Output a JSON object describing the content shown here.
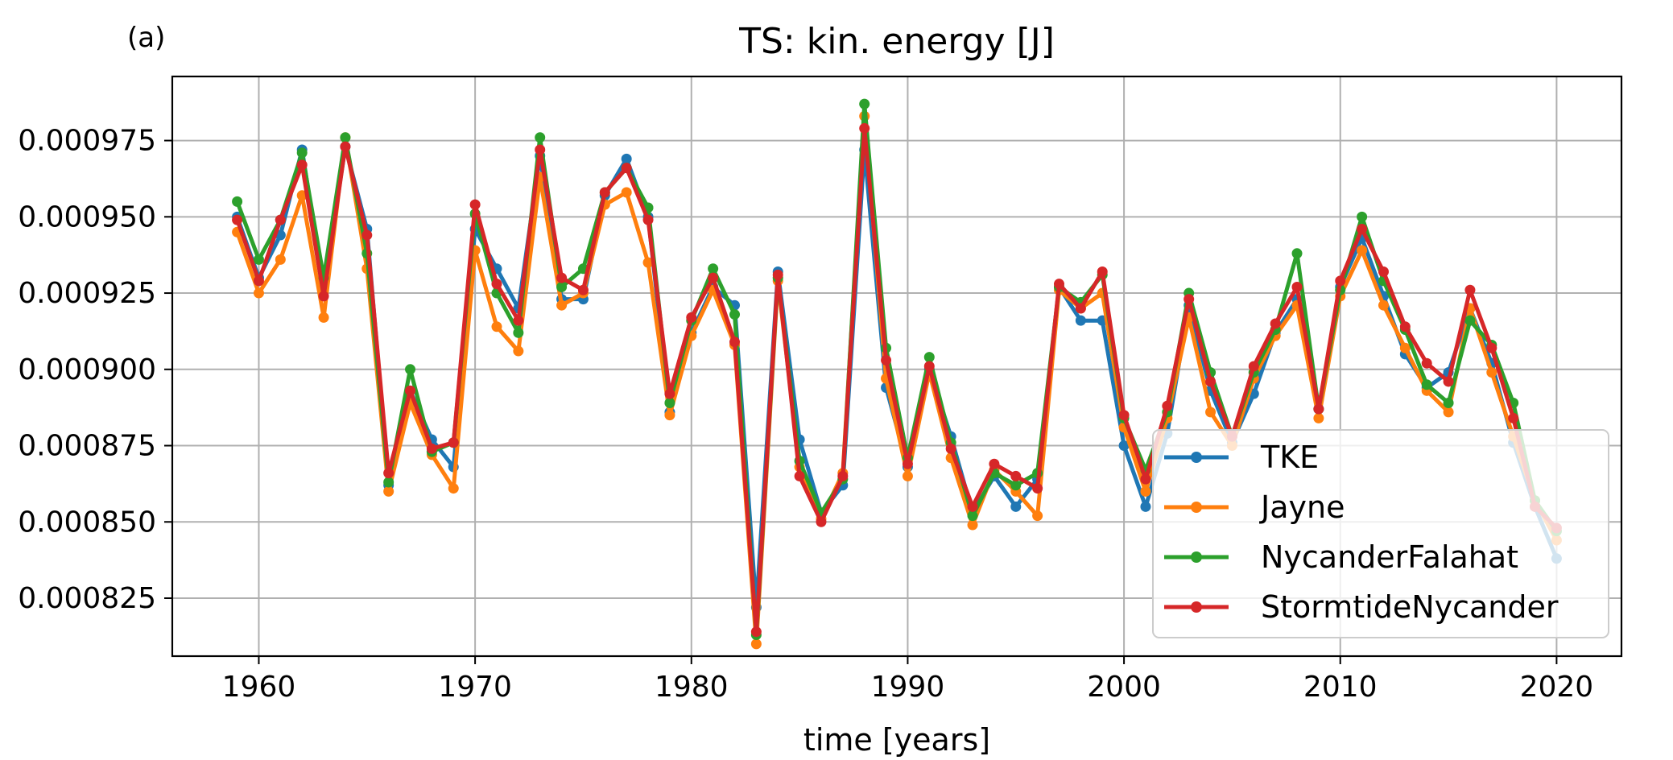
{
  "panel_label": "(a)",
  "chart_data": {
    "type": "line",
    "title": "TS: kin. energy [J]",
    "xlabel": "time [years]",
    "ylabel": "",
    "xlim": [
      1956,
      2023
    ],
    "ylim": [
      0.000806,
      0.000996
    ],
    "grid": true,
    "legend_position": "lower-right",
    "x_ticks": [
      1960,
      1970,
      1980,
      1990,
      2000,
      2010,
      2020
    ],
    "x_tick_labels": [
      "1960",
      "1970",
      "1980",
      "1990",
      "2000",
      "2010",
      "2020"
    ],
    "y_ticks": [
      0.000825,
      0.00085,
      0.000875,
      0.0009,
      0.000925,
      0.00095,
      0.000975
    ],
    "y_tick_labels": [
      "0.000825",
      "0.000850",
      "0.000875",
      "0.000900",
      "0.000925",
      "0.000950",
      "0.000975"
    ],
    "x": [
      1959,
      1960,
      1961,
      1962,
      1963,
      1964,
      1965,
      1966,
      1967,
      1968,
      1969,
      1970,
      1971,
      1972,
      1973,
      1974,
      1975,
      1976,
      1977,
      1978,
      1979,
      1980,
      1981,
      1982,
      1983,
      1984,
      1985,
      1986,
      1987,
      1988,
      1989,
      1990,
      1991,
      1992,
      1993,
      1994,
      1995,
      1996,
      1997,
      1998,
      1999,
      2000,
      2001,
      2002,
      2003,
      2004,
      2005,
      2006,
      2007,
      2008,
      2009,
      2010,
      2011,
      2012,
      2013,
      2014,
      2015,
      2016,
      2017,
      2018,
      2019,
      2020
    ],
    "series": [
      {
        "name": "TKE",
        "color": "#1f77b4",
        "values": [
          0.00095,
          0.00093,
          0.000944,
          0.000972,
          0.000926,
          0.000973,
          0.000946,
          0.000862,
          0.000893,
          0.000877,
          0.000868,
          0.000946,
          0.000933,
          0.00092,
          0.00097,
          0.000923,
          0.000923,
          0.000957,
          0.000969,
          0.00095,
          0.000886,
          0.000912,
          0.000927,
          0.000921,
          0.000822,
          0.000932,
          0.000877,
          0.000853,
          0.000862,
          0.000972,
          0.000894,
          0.000868,
          0.0009,
          0.000878,
          0.000853,
          0.000865,
          0.000855,
          0.000864,
          0.000927,
          0.000916,
          0.000916,
          0.000875,
          0.000855,
          0.000879,
          0.000921,
          0.000893,
          0.000876,
          0.000892,
          0.000912,
          0.000923,
          0.000887,
          0.000927,
          0.000943,
          0.000924,
          0.000905,
          0.000894,
          0.000899,
          0.00092,
          0.000902,
          0.000876,
          0.000855,
          0.000838
        ]
      },
      {
        "name": "Jayne",
        "color": "#ff7f0e",
        "values": [
          0.000945,
          0.000925,
          0.000936,
          0.000957,
          0.000917,
          0.000976,
          0.000933,
          0.00086,
          0.000889,
          0.000872,
          0.000861,
          0.000939,
          0.000914,
          0.000906,
          0.000963,
          0.000921,
          0.000925,
          0.000954,
          0.000958,
          0.000935,
          0.000885,
          0.000911,
          0.000926,
          0.000908,
          0.00081,
          0.000929,
          0.000868,
          0.000851,
          0.000866,
          0.000983,
          0.000897,
          0.000865,
          0.000899,
          0.000871,
          0.000849,
          0.000867,
          0.00086,
          0.000852,
          0.000926,
          0.00092,
          0.000925,
          0.000881,
          0.00086,
          0.000884,
          0.000917,
          0.000886,
          0.000875,
          0.000897,
          0.000911,
          0.000921,
          0.000884,
          0.000924,
          0.000939,
          0.000921,
          0.000907,
          0.000893,
          0.000886,
          0.00092,
          0.000899,
          0.000878,
          0.000857,
          0.000844
        ]
      },
      {
        "name": "NycanderFalahat",
        "color": "#2ca02c",
        "values": [
          0.000955,
          0.000936,
          0.000949,
          0.000971,
          0.00093,
          0.000976,
          0.000938,
          0.000863,
          0.0009,
          0.000873,
          0.000876,
          0.000951,
          0.000925,
          0.000912,
          0.000976,
          0.000927,
          0.000933,
          0.000958,
          0.000966,
          0.000953,
          0.000889,
          0.000916,
          0.000933,
          0.000918,
          0.000813,
          0.00093,
          0.00087,
          0.000853,
          0.000864,
          0.000987,
          0.000907,
          0.000871,
          0.000904,
          0.000876,
          0.000852,
          0.000866,
          0.000862,
          0.000866,
          0.000927,
          0.000922,
          0.000931,
          0.000884,
          0.000867,
          0.000886,
          0.000925,
          0.000899,
          0.000878,
          0.000899,
          0.000913,
          0.000938,
          0.000887,
          0.000926,
          0.00095,
          0.000929,
          0.000913,
          0.000895,
          0.000889,
          0.000916,
          0.000908,
          0.000889,
          0.000857,
          0.000847
        ]
      },
      {
        "name": "StormtideNycander",
        "color": "#d62728",
        "values": [
          0.000949,
          0.000929,
          0.000949,
          0.000967,
          0.000924,
          0.000973,
          0.000944,
          0.000866,
          0.000893,
          0.000874,
          0.000876,
          0.000954,
          0.000928,
          0.000916,
          0.000972,
          0.00093,
          0.000926,
          0.000958,
          0.000966,
          0.000949,
          0.000892,
          0.000917,
          0.00093,
          0.000909,
          0.000814,
          0.000931,
          0.000865,
          0.00085,
          0.000865,
          0.000979,
          0.000903,
          0.000869,
          0.000901,
          0.000874,
          0.000855,
          0.000869,
          0.000865,
          0.000861,
          0.000928,
          0.00092,
          0.000932,
          0.000885,
          0.000864,
          0.000888,
          0.000923,
          0.000896,
          0.000878,
          0.000901,
          0.000915,
          0.000927,
          0.000887,
          0.000929,
          0.000946,
          0.000932,
          0.000914,
          0.000902,
          0.000896,
          0.000926,
          0.000907,
          0.000884,
          0.000855,
          0.000848
        ]
      }
    ]
  }
}
